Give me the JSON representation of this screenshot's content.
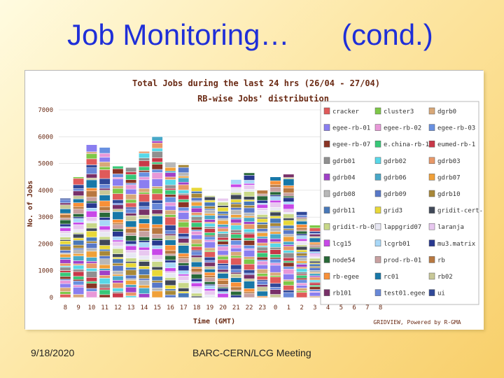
{
  "slide": {
    "title_main": "Job Monitoring…",
    "title_cond": "(cond.)",
    "footer_date": "9/18/2020",
    "footer_meeting": "BARC-CERN/LCG Meeting"
  },
  "chart_data": {
    "type": "bar",
    "stacked": true,
    "title": "Total Jobs during the last 24 hrs (26/04 - 27/04)",
    "subtitle": "RB-wise Jobs' distribution",
    "xlabel": "Time (GMT)",
    "ylabel": "No. of Jobs",
    "ylim": [
      0,
      7000
    ],
    "yticks": [
      "0",
      "1000",
      "2000",
      "3000",
      "4000",
      "5000",
      "6000",
      "7000"
    ],
    "credit": "GRIDVIEW, Powered by R-GMA",
    "legend_position": "right",
    "categories": [
      "8",
      "9",
      "10",
      "11",
      "12",
      "13",
      "14",
      "15",
      "16",
      "17",
      "18",
      "19",
      "20",
      "21",
      "22",
      "23",
      "0",
      "1",
      "2",
      "3",
      "4",
      "5",
      "6",
      "7",
      "8"
    ],
    "totals": [
      3700,
      4500,
      5700,
      5600,
      4900,
      4850,
      5450,
      6000,
      5050,
      4950,
      4100,
      3800,
      3700,
      4400,
      4650,
      4000,
      4500,
      4600,
      3200,
      2700,
      1800,
      0,
      0,
      0,
      0
    ],
    "series": [
      {
        "name": "cracker",
        "color": "#e05a5a"
      },
      {
        "name": "cluster3",
        "color": "#7ec848"
      },
      {
        "name": "dgrb0",
        "color": "#d8a878"
      },
      {
        "name": "egee-rb-01",
        "color": "#8a7ef0"
      },
      {
        "name": "egee-rb-02",
        "color": "#e898d8"
      },
      {
        "name": "egee-rb-03",
        "color": "#6890e0"
      },
      {
        "name": "egee-rb-07",
        "color": "#8a3424"
      },
      {
        "name": "e.china-rb-1",
        "color": "#38c878"
      },
      {
        "name": "eumed-rb-1",
        "color": "#c83848"
      },
      {
        "name": "gdrb01",
        "color": "#909090"
      },
      {
        "name": "gdrb02",
        "color": "#58d8e8"
      },
      {
        "name": "gdrb03",
        "color": "#e89868"
      },
      {
        "name": "gdrb04",
        "color": "#a040c8"
      },
      {
        "name": "gdrb06",
        "color": "#48a8c8"
      },
      {
        "name": "gdrb07",
        "color": "#f0a038"
      },
      {
        "name": "gdrb08",
        "color": "#b8b8b8"
      },
      {
        "name": "gdrb09",
        "color": "#5878c8"
      },
      {
        "name": "gdrb10",
        "color": "#a88838"
      },
      {
        "name": "gdrb11",
        "color": "#4878b8"
      },
      {
        "name": "grid3",
        "color": "#e8d838"
      },
      {
        "name": "gridit-cert-rb",
        "color": "#404858"
      },
      {
        "name": "gridit-rb-01",
        "color": "#c8d888"
      },
      {
        "name": "lappgrid07",
        "color": "#e8e8f4"
      },
      {
        "name": "laranja",
        "color": "#e8c8f0"
      },
      {
        "name": "lcg15",
        "color": "#c848e8"
      },
      {
        "name": "lcgrb01",
        "color": "#a8d8f8"
      },
      {
        "name": "mu3.matrix",
        "color": "#283890"
      },
      {
        "name": "node54",
        "color": "#286838"
      },
      {
        "name": "prod-rb-01",
        "color": "#c8a0a0"
      },
      {
        "name": "rb",
        "color": "#b87840"
      },
      {
        "name": "rb-egee",
        "color": "#f89038"
      },
      {
        "name": "rc01",
        "color": "#1878a8"
      },
      {
        "name": "rb02",
        "color": "#c8c898"
      },
      {
        "name": "rb101",
        "color": "#783068"
      },
      {
        "name": "test01.egee",
        "color": "#6888d8"
      },
      {
        "name": "ui",
        "color": "#304898"
      }
    ]
  }
}
